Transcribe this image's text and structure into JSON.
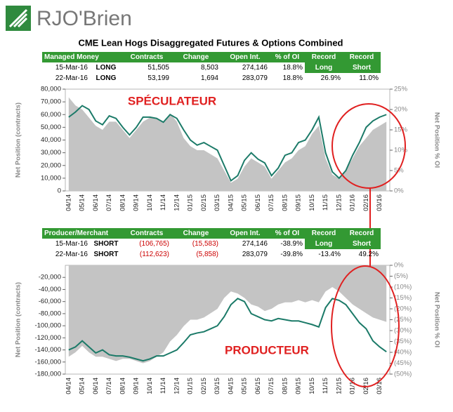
{
  "header": {
    "logo": "RJO'Brien",
    "title": "CME Lean Hogs Disaggregated Futures & Options Combined"
  },
  "table1": {
    "header": [
      "Managed Money",
      "Contracts",
      "Change",
      "Open Int.",
      "% of OI",
      "Record Long",
      "Record Short"
    ],
    "rows": [
      [
        "15-Mar-16",
        "LONG",
        "51,505",
        "8,503",
        "274,146",
        "18.8%"
      ],
      [
        "22-Mar-16",
        "LONG",
        "53,199",
        "1,694",
        "283,079",
        "18.8%",
        "26.9%",
        "11.0%"
      ]
    ]
  },
  "table2": {
    "header": [
      "Producer/Merchant",
      "Contracts",
      "Change",
      "Open Int.",
      "% of OI",
      "Record Long",
      "Record Short"
    ],
    "rows": [
      [
        "15-Mar-16",
        "SHORT",
        "(106,765)",
        "(15,583)",
        "274,146",
        "-38.9%"
      ],
      [
        "22-Mar-16",
        "SHORT",
        "(112,623)",
        "(5,858)",
        "283,079",
        "-39.8%",
        "-13.4%",
        "49.2%"
      ]
    ]
  },
  "chart_data": [
    {
      "type": "line",
      "annotation": "SPÉCULATEUR",
      "ylabel": "Net Position (contracts)",
      "y2label": "Net Position % OI",
      "categories": [
        "04/14",
        null,
        "05/14",
        null,
        "06/14",
        null,
        "07/14",
        null,
        "08/14",
        null,
        "09/14",
        null,
        "10/14",
        null,
        "11/14",
        null,
        "12/14",
        null,
        "01/15",
        null,
        "02/15",
        null,
        "03/15",
        null,
        "04/15",
        null,
        "05/15",
        null,
        "06/15",
        null,
        "07/15",
        null,
        "08/15",
        null,
        "09/15",
        null,
        "10/15",
        null,
        "11/15",
        null,
        "12/15",
        null,
        "01/16",
        null,
        "02/16",
        null,
        "03/16",
        null
      ],
      "ylim": [
        0,
        80000
      ],
      "yticks": [
        0,
        {
          "value": 10000,
          "label": "10,000"
        },
        {
          "value": 20000,
          "label": "20,000"
        },
        {
          "value": 30000,
          "label": "30,000"
        },
        {
          "value": 40000,
          "label": "40,000"
        },
        {
          "value": 50000,
          "label": "50,000"
        },
        {
          "value": 60000,
          "label": "60,000"
        },
        {
          "value": 70000,
          "label": "70,000"
        },
        {
          "value": 80000,
          "label": "80,000"
        }
      ],
      "y2lim": [
        0,
        25
      ],
      "y2ticks": [
        {
          "value": 0,
          "label": "0%"
        },
        {
          "value": 5,
          "label": "5%"
        },
        {
          "value": 10,
          "label": "10%"
        },
        {
          "value": 15,
          "label": "15%"
        },
        {
          "value": 20,
          "label": "20%"
        },
        {
          "value": 25,
          "label": "25%"
        }
      ],
      "series": [
        {
          "type": "area",
          "axis": "y2",
          "color": "#c4c4c4",
          "values": [
            23,
            21,
            20,
            18,
            16,
            15,
            17,
            17,
            15,
            13,
            15,
            17,
            18,
            18,
            17,
            19,
            17,
            13,
            11,
            10,
            10,
            9,
            8,
            5,
            2,
            3,
            6,
            8,
            7,
            6,
            3,
            5,
            7,
            8,
            10,
            11,
            14,
            16,
            8,
            4,
            3,
            5,
            8,
            11,
            13,
            15,
            16,
            17
          ]
        },
        {
          "type": "line",
          "color": "#1b7a68",
          "values": [
            58000,
            62000,
            67000,
            64000,
            55000,
            52000,
            59000,
            57000,
            50000,
            44000,
            50000,
            58000,
            58000,
            57000,
            54000,
            60000,
            57000,
            48000,
            40000,
            36000,
            38000,
            35000,
            32000,
            20000,
            8000,
            12000,
            24000,
            30000,
            25000,
            22000,
            12000,
            18000,
            28000,
            30000,
            38000,
            40000,
            48000,
            58000,
            30000,
            15000,
            10000,
            16000,
            28000,
            38000,
            50000,
            55000,
            58000,
            60000
          ]
        }
      ]
    },
    {
      "type": "line",
      "annotation": "PRODUCTEUR",
      "ylabel": "Net Position (contracts)",
      "y2label": "Net Position % OI",
      "categories": [
        "04/14",
        null,
        "05/14",
        null,
        "06/14",
        null,
        "07/14",
        null,
        "08/14",
        null,
        "09/14",
        null,
        "10/14",
        null,
        "11/14",
        null,
        "12/14",
        null,
        "01/15",
        null,
        "02/15",
        null,
        "03/15",
        null,
        "04/15",
        null,
        "05/15",
        null,
        "06/15",
        null,
        "07/15",
        null,
        "08/15",
        null,
        "09/15",
        null,
        "10/15",
        null,
        "11/15",
        null,
        "12/15",
        null,
        "01/16",
        null,
        "02/16",
        null,
        "03/16",
        null
      ],
      "ylim": [
        -180000,
        0
      ],
      "yticks": [
        {
          "value": -20000,
          "label": "-20,000"
        },
        {
          "value": -40000,
          "label": "-40,000"
        },
        {
          "value": -60000,
          "label": "-60,000"
        },
        {
          "value": -80000,
          "label": "-80,000"
        },
        {
          "value": -100000,
          "label": "-100,000"
        },
        {
          "value": -120000,
          "label": "-120,000"
        },
        {
          "value": -140000,
          "label": "-140,000"
        },
        {
          "value": -160000,
          "label": "-160,000"
        },
        {
          "value": -180000,
          "label": "-180,000"
        }
      ],
      "y2lim": [
        -50,
        0
      ],
      "y2ticks": [
        {
          "value": 0,
          "label": "0%"
        },
        {
          "value": -5,
          "label": "(5%)"
        },
        {
          "value": -10,
          "label": "(10%)"
        },
        {
          "value": -15,
          "label": "(15%)"
        },
        {
          "value": -20,
          "label": "(20%)"
        },
        {
          "value": -25,
          "label": "(25%)"
        },
        {
          "value": -30,
          "label": "(30%)"
        },
        {
          "value": -35,
          "label": "(35%)"
        },
        {
          "value": -40,
          "label": "(40%)"
        },
        {
          "value": -45,
          "label": "(45%)"
        },
        {
          "value": -50,
          "label": "(50%)"
        }
      ],
      "series": [
        {
          "type": "area",
          "axis": "y2",
          "color": "#c4c4c4",
          "values": [
            -42,
            -40,
            -37,
            -40,
            -42,
            -42,
            -43,
            -44,
            -43,
            -43,
            -44,
            -45,
            -44,
            -42,
            -40,
            -35,
            -32,
            -28,
            -25,
            -25,
            -24,
            -22,
            -20,
            -15,
            -12,
            -13,
            -15,
            -18,
            -19,
            -21,
            -20,
            -18,
            -17,
            -17,
            -16,
            -17,
            -16,
            -17,
            -12,
            -10,
            -12,
            -15,
            -18,
            -20,
            -22,
            -24,
            -25,
            -26
          ]
        },
        {
          "type": "line",
          "color": "#1b7a68",
          "values": [
            -140000,
            -135000,
            -125000,
            -135000,
            -145000,
            -140000,
            -148000,
            -150000,
            -150000,
            -152000,
            -155000,
            -158000,
            -155000,
            -150000,
            -150000,
            -145000,
            -140000,
            -128000,
            -115000,
            -112000,
            -110000,
            -105000,
            -100000,
            -85000,
            -65000,
            -55000,
            -60000,
            -80000,
            -85000,
            -90000,
            -92000,
            -88000,
            -90000,
            -92000,
            -92000,
            -95000,
            -98000,
            -102000,
            -70000,
            -55000,
            -58000,
            -65000,
            -80000,
            -95000,
            -105000,
            -125000,
            -135000,
            -143000
          ]
        }
      ]
    }
  ]
}
